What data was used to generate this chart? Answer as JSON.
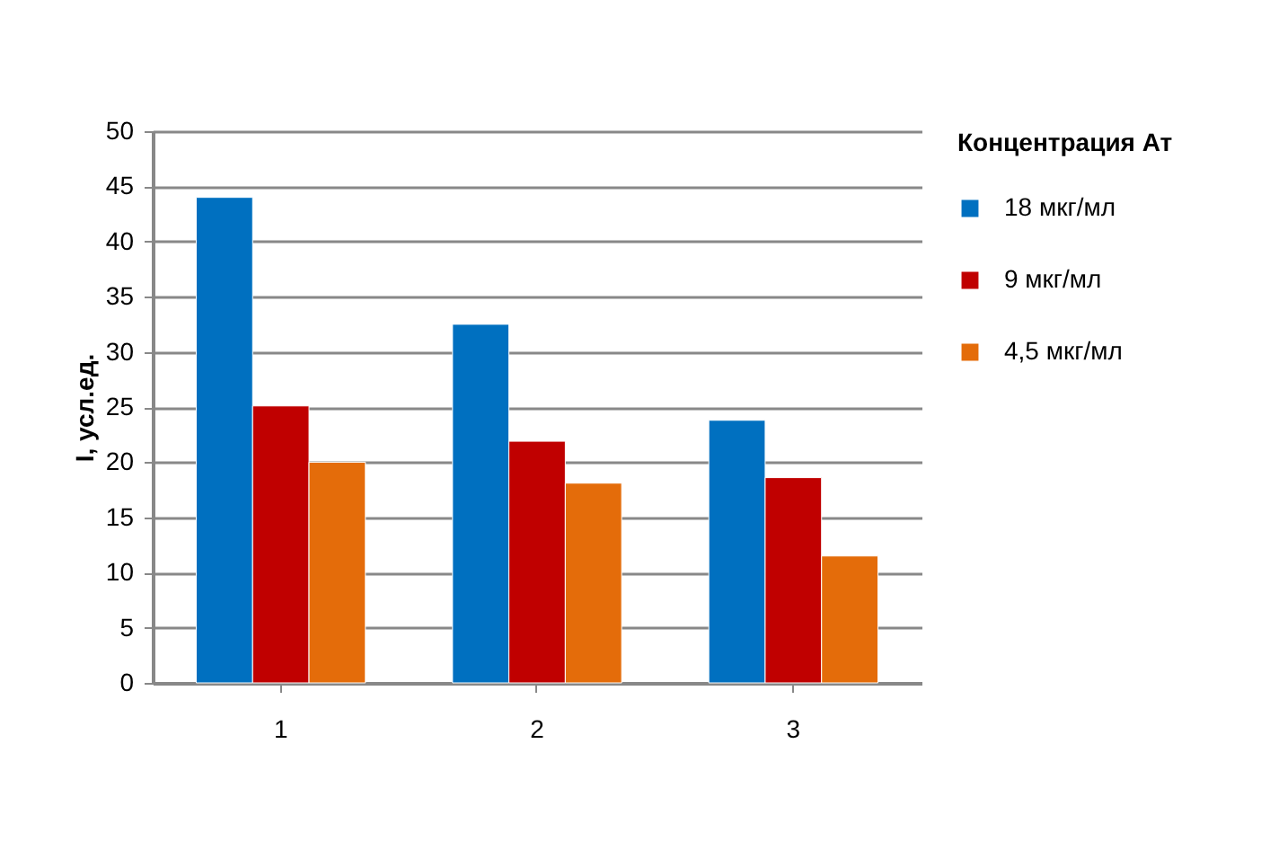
{
  "chart_data": {
    "type": "bar",
    "ylabel": "I, усл.ед.",
    "legend_title": "Концентрация  Ат",
    "categories": [
      "1",
      "2",
      "3"
    ],
    "series": [
      {
        "name": "18 мкг/мл",
        "color": "#0070c0",
        "values": [
          44.0,
          32.5,
          23.8
        ]
      },
      {
        "name": "9 мкг/мл",
        "color": "#c00000",
        "values": [
          25.1,
          21.9,
          18.6
        ]
      },
      {
        "name": "4,5 мкг/мл",
        "color": "#e46c0a",
        "values": [
          20.0,
          18.1,
          11.5
        ]
      }
    ],
    "ylim": [
      0,
      50
    ],
    "yticks": [
      0,
      5,
      10,
      15,
      20,
      25,
      30,
      35,
      40,
      45,
      50
    ],
    "grid": "y",
    "legend": "right"
  }
}
